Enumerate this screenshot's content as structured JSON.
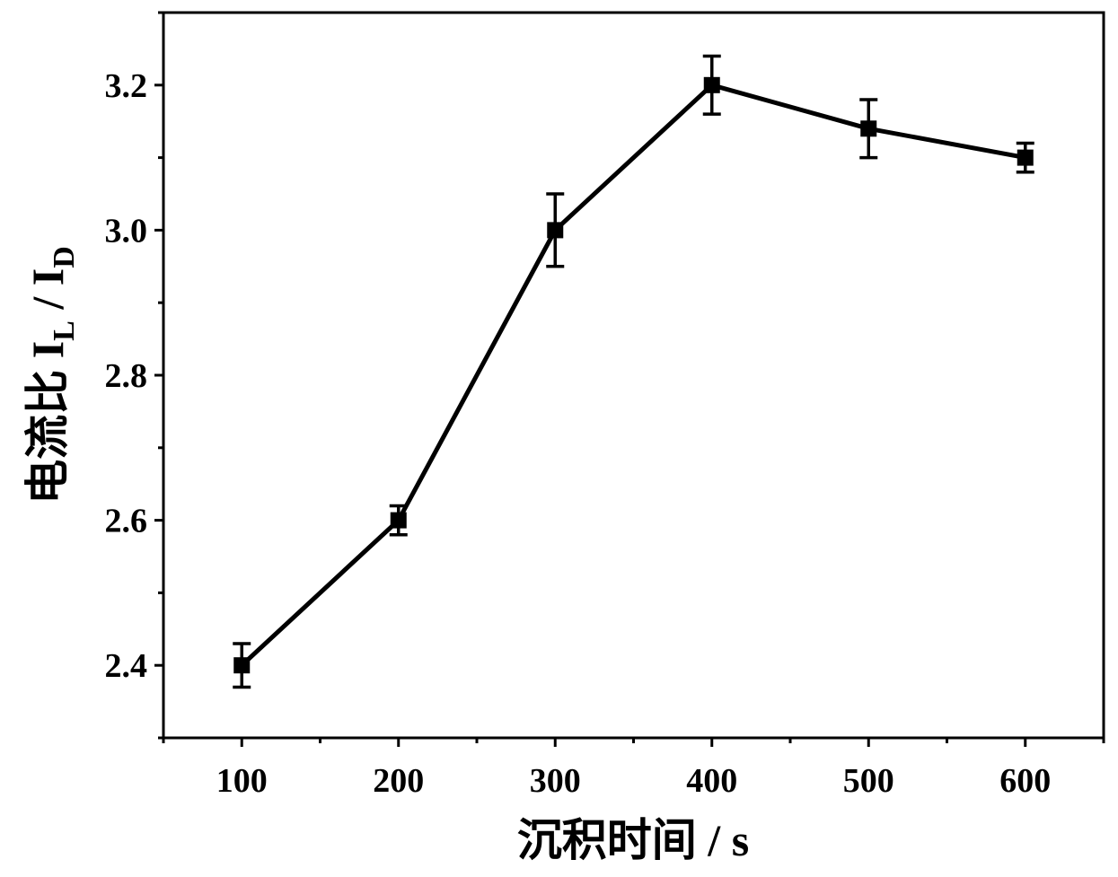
{
  "chart_data": {
    "type": "line",
    "xlabel": "沉积时间 / s",
    "ylabel": {
      "prefix": "电流比 I",
      "sub1": "L",
      "mid": " / I",
      "sub2": "D"
    },
    "x": [
      100,
      200,
      300,
      400,
      500,
      600
    ],
    "series": [
      {
        "values": [
          2.4,
          2.6,
          3.0,
          3.2,
          3.14,
          3.1
        ],
        "errors": [
          0.03,
          0.02,
          0.05,
          0.04,
          0.04,
          0.02
        ]
      }
    ],
    "xlim": [
      50,
      650
    ],
    "ylim": [
      2.3,
      3.3
    ],
    "xticks": [
      "100",
      "200",
      "300",
      "400",
      "500",
      "600"
    ],
    "yticks": [
      "2.4",
      "2.6",
      "2.8",
      "3.0",
      "3.2"
    ],
    "grid": false,
    "marker": "square",
    "color": "#000000"
  }
}
